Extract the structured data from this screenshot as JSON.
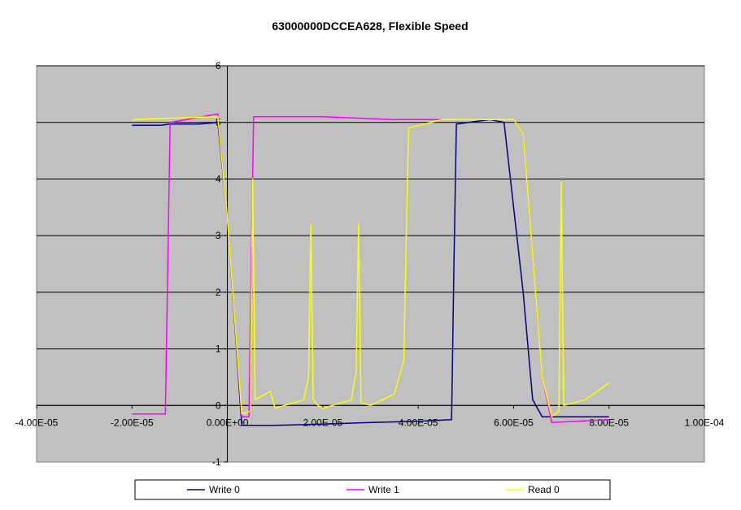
{
  "chart_data": {
    "type": "line",
    "title": "63000000DCCEA628, Flexible Speed",
    "xlabel": "",
    "ylabel": "",
    "xlim": [
      -4e-05,
      0.0001
    ],
    "ylim": [
      -1,
      6
    ],
    "x_ticks": [
      -4e-05,
      -2e-05,
      0,
      2e-05,
      4e-05,
      6e-05,
      8e-05,
      0.0001
    ],
    "x_tick_labels": [
      "-4.00E-05",
      "-2.00E-05",
      "0.00E+00",
      "2.00E-05",
      "4.00E-05",
      "6.00E-05",
      "8.00E-05",
      "1.00E-04"
    ],
    "y_ticks": [
      -1,
      0,
      1,
      2,
      3,
      4,
      5,
      6
    ],
    "y_tick_labels": [
      "-1",
      "0",
      "1",
      "2",
      "3",
      "4",
      "5",
      "6"
    ],
    "grid": "horizontal major gridlines",
    "plot_background": "#c0c0c0",
    "legend_position": "bottom",
    "series": [
      {
        "name": "Write 0",
        "color": "#000080",
        "points": [
          [
            -2e-05,
            4.95
          ],
          [
            -1.4e-05,
            4.95
          ],
          [
            -1.2e-05,
            4.97
          ],
          [
            -6e-06,
            4.97
          ],
          [
            -2e-06,
            5.0
          ],
          [
            0,
            3.3
          ],
          [
            2e-06,
            0.9
          ],
          [
            3e-06,
            -0.35
          ],
          [
            1e-05,
            -0.35
          ],
          [
            2e-05,
            -0.33
          ],
          [
            3e-05,
            -0.3
          ],
          [
            4e-05,
            -0.28
          ],
          [
            4.7e-05,
            -0.25
          ],
          [
            4.75e-05,
            2.5
          ],
          [
            4.8e-05,
            4.97
          ],
          [
            5.5e-05,
            5.05
          ],
          [
            5.8e-05,
            5.0
          ],
          [
            6.2e-05,
            2.0
          ],
          [
            6.4e-05,
            0.1
          ],
          [
            6.6e-05,
            -0.2
          ],
          [
            8e-05,
            -0.2
          ]
        ]
      },
      {
        "name": "Write 1",
        "color": "#ff00ff",
        "points": [
          [
            -2e-05,
            -0.15
          ],
          [
            -1.3e-05,
            -0.15
          ],
          [
            -1.25e-05,
            2.5
          ],
          [
            -1.2e-05,
            5.0
          ],
          [
            -2e-06,
            5.15
          ],
          [
            0,
            3.3
          ],
          [
            2e-06,
            1.0
          ],
          [
            3e-06,
            -0.2
          ],
          [
            4.5e-06,
            -0.2
          ],
          [
            5e-06,
            2.5
          ],
          [
            5.5e-06,
            5.1
          ],
          [
            2e-05,
            5.1
          ],
          [
            3.5e-05,
            5.05
          ],
          [
            5e-05,
            5.05
          ],
          [
            6e-05,
            5.05
          ],
          [
            6.2e-05,
            4.8
          ],
          [
            6.6e-05,
            0.5
          ],
          [
            6.8e-05,
            -0.3
          ],
          [
            8e-05,
            -0.25
          ]
        ]
      },
      {
        "name": "Read 0",
        "color": "#ffff00",
        "points": [
          [
            -2e-05,
            5.05
          ],
          [
            -1e-05,
            5.08
          ],
          [
            -2e-06,
            5.1
          ],
          [
            0,
            3.3
          ],
          [
            2e-06,
            1.0
          ],
          [
            3e-06,
            -0.15
          ],
          [
            4.8e-06,
            -0.1
          ],
          [
            5.3e-06,
            4.0
          ],
          [
            5.8e-06,
            0.1
          ],
          [
            9e-06,
            0.25
          ],
          [
            1e-05,
            -0.05
          ],
          [
            1.6e-05,
            0.1
          ],
          [
            1.7e-05,
            0.5
          ],
          [
            1.75e-05,
            3.2
          ],
          [
            1.8e-05,
            0.1
          ],
          [
            1.9e-05,
            0.0
          ],
          [
            2e-05,
            -0.05
          ],
          [
            2.6e-05,
            0.1
          ],
          [
            2.7e-05,
            0.6
          ],
          [
            2.75e-05,
            3.2
          ],
          [
            2.8e-05,
            0.05
          ],
          [
            3e-05,
            0.0
          ],
          [
            3.5e-05,
            0.2
          ],
          [
            3.7e-05,
            0.8
          ],
          [
            3.75e-05,
            3.0
          ],
          [
            3.8e-05,
            4.9
          ],
          [
            4.5e-05,
            5.05
          ],
          [
            5.5e-05,
            5.05
          ],
          [
            6e-05,
            5.05
          ],
          [
            6.2e-05,
            4.8
          ],
          [
            6.6e-05,
            0.5
          ],
          [
            6.8e-05,
            -0.2
          ],
          [
            6.95e-05,
            -0.1
          ],
          [
            7e-05,
            3.95
          ],
          [
            7.05e-05,
            0.0
          ],
          [
            7.5e-05,
            0.1
          ],
          [
            8e-05,
            0.4
          ]
        ]
      }
    ]
  }
}
